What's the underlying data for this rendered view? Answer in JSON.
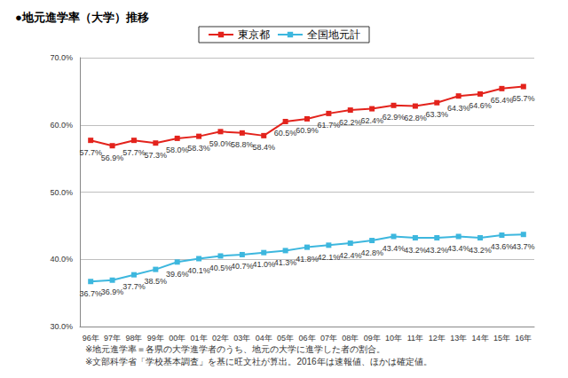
{
  "chart_data": {
    "type": "line",
    "title": "●地元進学率（大学）推移",
    "categories": [
      "96年",
      "97年",
      "98年",
      "99年",
      "00年",
      "01年",
      "02年",
      "03年",
      "04年",
      "05年",
      "06年",
      "07年",
      "08年",
      "09年",
      "10年",
      "11年",
      "12年",
      "13年",
      "14年",
      "15年",
      "16年"
    ],
    "series": [
      {
        "name": "東京都",
        "color": "#e3231c",
        "marker": "square",
        "values": [
          57.7,
          56.9,
          57.7,
          57.3,
          58.0,
          58.3,
          59.0,
          58.8,
          58.4,
          60.5,
          60.9,
          61.7,
          62.2,
          62.4,
          62.9,
          62.8,
          63.3,
          64.3,
          64.6,
          65.4,
          65.7
        ],
        "value_labels": [
          "57.7%",
          "56.9%",
          "57.7%",
          "57.3%",
          "58.0%",
          "58.3%",
          "59.0%",
          "58.8%",
          "58.4%",
          "60.5%",
          "60.9%",
          "61.7%",
          "62.2%",
          "62.4%",
          "62.9%",
          "62.8%",
          "63.3%",
          "64.3%",
          "64.6%",
          "65.4%",
          "65.7%"
        ]
      },
      {
        "name": "全国地元計",
        "color": "#3db7de",
        "marker": "square",
        "values": [
          36.7,
          36.9,
          37.7,
          38.5,
          39.6,
          40.1,
          40.5,
          40.7,
          41.0,
          41.3,
          41.8,
          42.1,
          42.4,
          42.8,
          43.4,
          43.2,
          43.2,
          43.4,
          43.2,
          43.6,
          43.7
        ],
        "value_labels": [
          "36.7%",
          "36.9%",
          "37.7%",
          "38.5%",
          "39.6%",
          "40.1%",
          "40.5%",
          "40.7%",
          "41.0%",
          "41.3%",
          "41.8%",
          "42.1%",
          "42.4%",
          "42.8%",
          "43.4%",
          "43.2%",
          "43.2%",
          "43.4%",
          "43.2%",
          "43.6%",
          "43.7%"
        ]
      }
    ],
    "ylim": [
      30,
      70
    ],
    "yticks": [
      {
        "value": 30,
        "label": "30.0%"
      },
      {
        "value": 40,
        "label": "40.0%"
      },
      {
        "value": 50,
        "label": "50.0%"
      },
      {
        "value": 60,
        "label": "60.0%"
      },
      {
        "value": 70,
        "label": "70.0%"
      }
    ],
    "grid": true,
    "legend": "top",
    "data_labels": true,
    "annotations": [
      "※地元進学率＝各県の大学進学者のうち、地元の大学に進学した者の割合。",
      "※文部科学省「学校基本調査」を基に旺文社が算出。2016年は速報値、ほかは確定値。"
    ]
  }
}
